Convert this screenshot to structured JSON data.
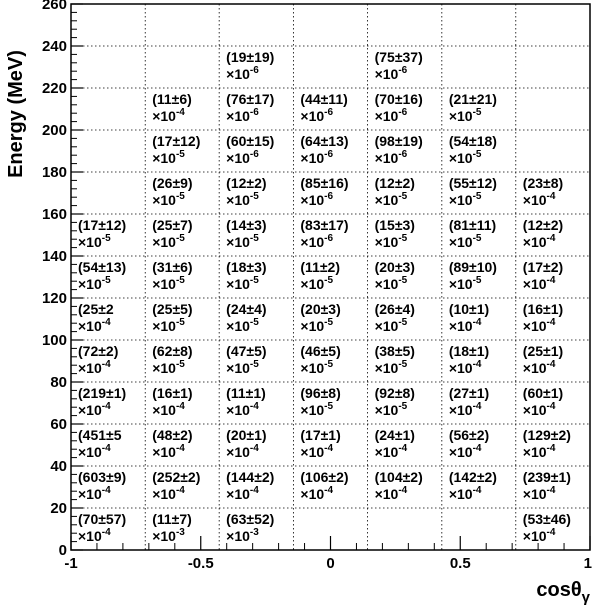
{
  "chart_data": {
    "type": "table",
    "xlabel_main": "cosθ",
    "xlabel_sub": "γ",
    "ylabel": "Energy (MeV)",
    "xlim": [
      -1,
      1
    ],
    "ylim": [
      0,
      260
    ],
    "x_ticks": [
      -1,
      -0.5,
      0,
      0.5,
      1
    ],
    "x_tick_labels": [
      "-1",
      "-0.5",
      "0",
      "0.5",
      "1"
    ],
    "y_ticks": [
      0,
      20,
      40,
      60,
      80,
      100,
      120,
      140,
      160,
      180,
      200,
      220,
      240,
      260
    ],
    "y_tick_labels": [
      "0",
      "20",
      "40",
      "60",
      "80",
      "100",
      "120",
      "140",
      "160",
      "180",
      "200",
      "220",
      "240",
      "260"
    ],
    "x_bin_edges": [
      -1.0,
      -0.714,
      -0.429,
      -0.143,
      0.143,
      0.429,
      0.714,
      1.0
    ],
    "y_bin_edges": [
      0,
      20,
      40,
      60,
      80,
      100,
      120,
      140,
      160,
      180,
      200,
      220,
      240,
      260
    ],
    "grid": true,
    "cells": [
      {
        "xbin": 0,
        "ybin": 0,
        "value": "(70±57)",
        "exp": "-4"
      },
      {
        "xbin": 1,
        "ybin": 0,
        "value": "(11±7)",
        "exp": "-3"
      },
      {
        "xbin": 2,
        "ybin": 0,
        "value": "(63±52)",
        "exp": "-3"
      },
      {
        "xbin": 6,
        "ybin": 0,
        "value": "(53±46)",
        "exp": "-4"
      },
      {
        "xbin": 0,
        "ybin": 1,
        "value": "(603±9)",
        "exp": "-4"
      },
      {
        "xbin": 1,
        "ybin": 1,
        "value": "(252±2)",
        "exp": "-4"
      },
      {
        "xbin": 2,
        "ybin": 1,
        "value": "(144±2)",
        "exp": "-4"
      },
      {
        "xbin": 3,
        "ybin": 1,
        "value": "(106±2)",
        "exp": "-4"
      },
      {
        "xbin": 4,
        "ybin": 1,
        "value": "(104±2)",
        "exp": "-4"
      },
      {
        "xbin": 5,
        "ybin": 1,
        "value": "(142±2)",
        "exp": "-4"
      },
      {
        "xbin": 6,
        "ybin": 1,
        "value": "(239±1)",
        "exp": "-4"
      },
      {
        "xbin": 0,
        "ybin": 2,
        "value": "(451±5",
        "exp": "-4"
      },
      {
        "xbin": 1,
        "ybin": 2,
        "value": "(48±2)",
        "exp": "-4"
      },
      {
        "xbin": 2,
        "ybin": 2,
        "value": "(20±1)",
        "exp": "-4"
      },
      {
        "xbin": 3,
        "ybin": 2,
        "value": "(17±1)",
        "exp": "-4"
      },
      {
        "xbin": 4,
        "ybin": 2,
        "value": "(24±1)",
        "exp": "-4"
      },
      {
        "xbin": 5,
        "ybin": 2,
        "value": "(56±2)",
        "exp": "-4"
      },
      {
        "xbin": 6,
        "ybin": 2,
        "value": "(129±2)",
        "exp": "-4"
      },
      {
        "xbin": 0,
        "ybin": 3,
        "value": "(219±1)",
        "exp": "-4"
      },
      {
        "xbin": 1,
        "ybin": 3,
        "value": "(16±1)",
        "exp": "-4"
      },
      {
        "xbin": 2,
        "ybin": 3,
        "value": "(11±1)",
        "exp": "-4"
      },
      {
        "xbin": 3,
        "ybin": 3,
        "value": "(96±8)",
        "exp": "-5"
      },
      {
        "xbin": 4,
        "ybin": 3,
        "value": "(92±8)",
        "exp": "-5"
      },
      {
        "xbin": 5,
        "ybin": 3,
        "value": "(27±1)",
        "exp": "-4"
      },
      {
        "xbin": 6,
        "ybin": 3,
        "value": "(60±1)",
        "exp": "-4"
      },
      {
        "xbin": 0,
        "ybin": 4,
        "value": "(72±2)",
        "exp": "-4"
      },
      {
        "xbin": 1,
        "ybin": 4,
        "value": "(62±8)",
        "exp": "-5"
      },
      {
        "xbin": 2,
        "ybin": 4,
        "value": "(47±5)",
        "exp": "-5"
      },
      {
        "xbin": 3,
        "ybin": 4,
        "value": "(46±5)",
        "exp": "-5"
      },
      {
        "xbin": 4,
        "ybin": 4,
        "value": "(38±5)",
        "exp": "-5"
      },
      {
        "xbin": 5,
        "ybin": 4,
        "value": "(18±1)",
        "exp": "-4"
      },
      {
        "xbin": 6,
        "ybin": 4,
        "value": "(25±1)",
        "exp": "-4"
      },
      {
        "xbin": 0,
        "ybin": 5,
        "value": "(25±2",
        "exp": "-4"
      },
      {
        "xbin": 1,
        "ybin": 5,
        "value": "(25±5)",
        "exp": "-5"
      },
      {
        "xbin": 2,
        "ybin": 5,
        "value": "(24±4)",
        "exp": "-5"
      },
      {
        "xbin": 3,
        "ybin": 5,
        "value": "(20±3)",
        "exp": "-5"
      },
      {
        "xbin": 4,
        "ybin": 5,
        "value": "(26±4)",
        "exp": "-5"
      },
      {
        "xbin": 5,
        "ybin": 5,
        "value": "(10±1)",
        "exp": "-4"
      },
      {
        "xbin": 6,
        "ybin": 5,
        "value": "(16±1)",
        "exp": "-4"
      },
      {
        "xbin": 0,
        "ybin": 6,
        "value": "(54±13)",
        "exp": "-5"
      },
      {
        "xbin": 1,
        "ybin": 6,
        "value": "(31±6)",
        "exp": "-5"
      },
      {
        "xbin": 2,
        "ybin": 6,
        "value": "(18±3)",
        "exp": "-5"
      },
      {
        "xbin": 3,
        "ybin": 6,
        "value": "(11±2)",
        "exp": "-5"
      },
      {
        "xbin": 4,
        "ybin": 6,
        "value": "(20±3)",
        "exp": "-5"
      },
      {
        "xbin": 5,
        "ybin": 6,
        "value": "(89±10)",
        "exp": "-5"
      },
      {
        "xbin": 6,
        "ybin": 6,
        "value": "(17±2)",
        "exp": "-4"
      },
      {
        "xbin": 0,
        "ybin": 7,
        "value": "(17±12)",
        "exp": "-5"
      },
      {
        "xbin": 1,
        "ybin": 7,
        "value": "(25±7)",
        "exp": "-5"
      },
      {
        "xbin": 2,
        "ybin": 7,
        "value": "(14±3)",
        "exp": "-5"
      },
      {
        "xbin": 3,
        "ybin": 7,
        "value": "(83±17)",
        "exp": "-6"
      },
      {
        "xbin": 4,
        "ybin": 7,
        "value": "(15±3)",
        "exp": "-5"
      },
      {
        "xbin": 5,
        "ybin": 7,
        "value": "(81±11)",
        "exp": "-5"
      },
      {
        "xbin": 6,
        "ybin": 7,
        "value": "(12±2)",
        "exp": "-4"
      },
      {
        "xbin": 1,
        "ybin": 8,
        "value": "(26±9)",
        "exp": "-5"
      },
      {
        "xbin": 2,
        "ybin": 8,
        "value": "(12±2)",
        "exp": "-5"
      },
      {
        "xbin": 3,
        "ybin": 8,
        "value": "(85±16)",
        "exp": "-6"
      },
      {
        "xbin": 4,
        "ybin": 8,
        "value": "(12±2)",
        "exp": "-5"
      },
      {
        "xbin": 5,
        "ybin": 8,
        "value": "(55±12)",
        "exp": "-5"
      },
      {
        "xbin": 6,
        "ybin": 8,
        "value": "(23±8)",
        "exp": "-4"
      },
      {
        "xbin": 1,
        "ybin": 9,
        "value": "(17±12)",
        "exp": "-5"
      },
      {
        "xbin": 2,
        "ybin": 9,
        "value": "(60±15)",
        "exp": "-6"
      },
      {
        "xbin": 3,
        "ybin": 9,
        "value": "(64±13)",
        "exp": "-6"
      },
      {
        "xbin": 4,
        "ybin": 9,
        "value": "(98±19)",
        "exp": "-6"
      },
      {
        "xbin": 5,
        "ybin": 9,
        "value": "(54±18)",
        "exp": "-5"
      },
      {
        "xbin": 1,
        "ybin": 10,
        "value": "(11±6)",
        "exp": "-4"
      },
      {
        "xbin": 2,
        "ybin": 10,
        "value": "(76±17)",
        "exp": "-6"
      },
      {
        "xbin": 3,
        "ybin": 10,
        "value": "(44±11)",
        "exp": "-6"
      },
      {
        "xbin": 4,
        "ybin": 10,
        "value": "(70±16)",
        "exp": "-6"
      },
      {
        "xbin": 5,
        "ybin": 10,
        "value": "(21±21)",
        "exp": "-5"
      },
      {
        "xbin": 2,
        "ybin": 11,
        "value": "(19±19)",
        "exp": "-6"
      },
      {
        "xbin": 4,
        "ybin": 11,
        "value": "(75±37)",
        "exp": "-6"
      }
    ]
  }
}
